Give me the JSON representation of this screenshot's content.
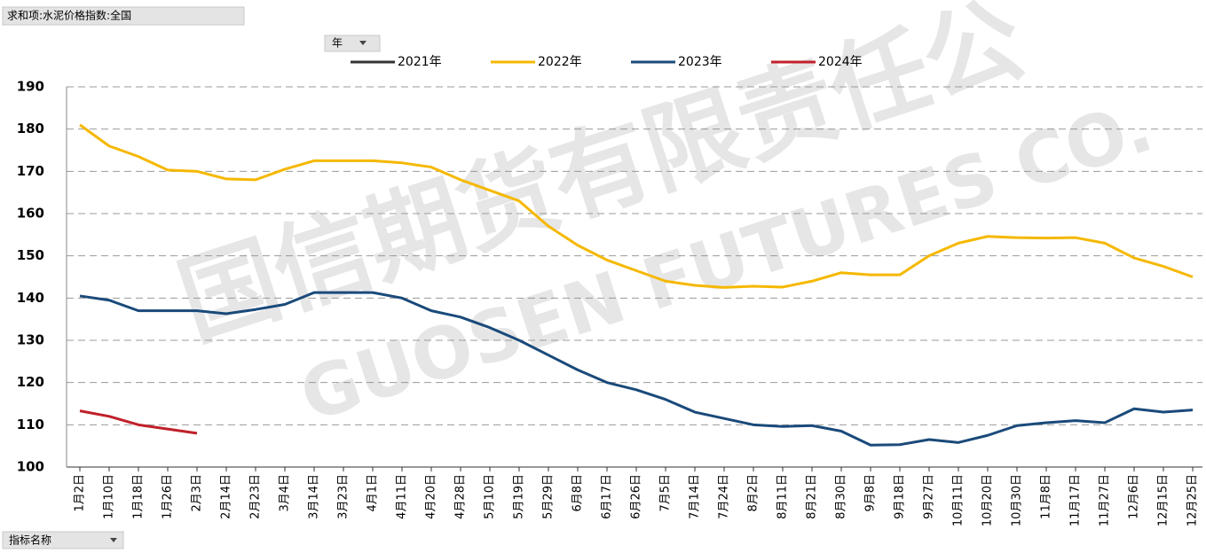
{
  "chart_data": {
    "type": "line",
    "field_button": "求和项:水泥价格指数:全国",
    "legend_button": "年",
    "axis_button": "指标名称",
    "watermark": [
      "国信期货有限责任公",
      "GUOSEN FUTURES CO."
    ],
    "categories": [
      "1月2日",
      "1月10日",
      "1月18日",
      "1月26日",
      "2月3日",
      "2月14日",
      "2月23日",
      "3月4日",
      "3月14日",
      "3月23日",
      "4月1日",
      "4月11日",
      "4月20日",
      "4月28日",
      "5月10日",
      "5月19日",
      "5月29日",
      "6月8日",
      "6月17日",
      "6月26日",
      "7月5日",
      "7月14日",
      "7月24日",
      "8月2日",
      "8月11日",
      "8月21日",
      "8月30日",
      "9月8日",
      "9月18日",
      "9月27日",
      "10月11日",
      "10月20日",
      "10月30日",
      "11月8日",
      "11月17日",
      "11月27日",
      "12月6日",
      "12月15日",
      "12月25日"
    ],
    "series": [
      {
        "name": "2021年",
        "color": "#333333",
        "values": [
          null,
          null,
          null,
          null,
          null,
          null,
          null,
          null,
          null,
          null,
          null,
          null,
          null,
          null,
          null,
          null,
          null,
          null,
          null,
          null,
          null,
          null,
          null,
          null,
          null,
          null,
          null,
          null,
          null,
          null,
          null,
          null,
          null,
          null,
          null,
          null,
          null,
          null,
          null
        ]
      },
      {
        "name": "2022年",
        "color": "#f5b800",
        "values": [
          181,
          176,
          173.5,
          170.3,
          170,
          168.2,
          168,
          170.5,
          172.5,
          172.5,
          172.5,
          172,
          171,
          168,
          165.5,
          163,
          157,
          152.5,
          149,
          146.5,
          144,
          143,
          142.5,
          142.8,
          142.6,
          144,
          146,
          145.5,
          145.5,
          150,
          153,
          154.6,
          154.3,
          154.2,
          154.3,
          153,
          149.5,
          147.5,
          145
        ]
      },
      {
        "name": "2023年",
        "color": "#1a4a7a",
        "values": [
          140.5,
          139.5,
          137,
          137,
          137,
          136.3,
          137.3,
          138.5,
          141.3,
          141.3,
          141.3,
          140,
          137,
          135.5,
          133,
          130,
          126.5,
          123,
          120,
          118.3,
          116,
          113,
          111.5,
          110,
          109.6,
          109.8,
          108.5,
          105.2,
          105.3,
          106.5,
          105.8,
          107.5,
          109.8,
          110.5,
          111,
          110.5,
          113.8,
          113,
          113.5
        ]
      },
      {
        "name": "2024年",
        "color": "#c0202a",
        "values": [
          113.3,
          112,
          110,
          109,
          108,
          null,
          null,
          null,
          null,
          null,
          null,
          null,
          null,
          null,
          null,
          null,
          null,
          null,
          null,
          null,
          null,
          null,
          null,
          null,
          null,
          null,
          null,
          null,
          null,
          null,
          null,
          null,
          null,
          null,
          null,
          null,
          null,
          null,
          null
        ]
      }
    ],
    "ylim": [
      100,
      190
    ],
    "yticks": [
      100,
      110,
      120,
      130,
      140,
      150,
      160,
      170,
      180,
      190
    ],
    "grid": true,
    "legend": "top"
  }
}
